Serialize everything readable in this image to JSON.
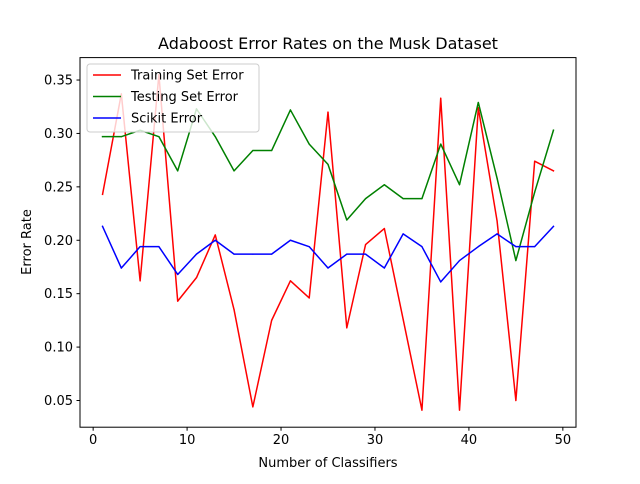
{
  "chart_data": {
    "type": "line",
    "title": "Adaboost Error Rates on the Musk Dataset",
    "xlabel": "Number of Classifiers",
    "ylabel": "Error Rate",
    "xlim": [
      -1.4,
      51.4
    ],
    "ylim": [
      0.025,
      0.371
    ],
    "xticks": [
      0,
      10,
      20,
      30,
      40,
      50
    ],
    "yticks": [
      0.05,
      0.1,
      0.15,
      0.2,
      0.25,
      0.3,
      0.35
    ],
    "ytick_labels": [
      "0.05",
      "0.10",
      "0.15",
      "0.20",
      "0.25",
      "0.30",
      "0.35"
    ],
    "grid": false,
    "legend_position": "top-left",
    "x": [
      1,
      3,
      5,
      7,
      9,
      11,
      13,
      15,
      17,
      19,
      21,
      23,
      25,
      27,
      29,
      31,
      33,
      35,
      37,
      39,
      41,
      43,
      45,
      47,
      49
    ],
    "series": [
      {
        "name": "Training Set Error",
        "color": "#ff0000",
        "values": [
          0.243,
          0.337,
          0.162,
          0.355,
          0.143,
          0.165,
          0.205,
          0.135,
          0.044,
          0.125,
          0.162,
          0.146,
          0.32,
          0.118,
          0.196,
          0.211,
          0.126,
          0.041,
          0.333,
          0.041,
          0.324,
          0.218,
          0.05,
          0.274,
          0.265
        ]
      },
      {
        "name": "Testing Set Error",
        "color": "#008000",
        "values": [
          0.297,
          0.297,
          0.303,
          0.297,
          0.265,
          0.323,
          0.297,
          0.265,
          0.284,
          0.284,
          0.322,
          0.29,
          0.271,
          0.219,
          0.239,
          0.252,
          0.239,
          0.239,
          0.29,
          0.252,
          0.329,
          0.258,
          0.181,
          0.245,
          0.303
        ]
      },
      {
        "name": "Scikit Error",
        "color": "#0000ff",
        "values": [
          0.213,
          0.174,
          0.194,
          0.194,
          0.168,
          0.187,
          0.2,
          0.187,
          0.187,
          0.187,
          0.2,
          0.194,
          0.174,
          0.187,
          0.187,
          0.174,
          0.206,
          0.194,
          0.161,
          0.181,
          0.194,
          0.206,
          0.194,
          0.194,
          0.213
        ]
      }
    ]
  }
}
